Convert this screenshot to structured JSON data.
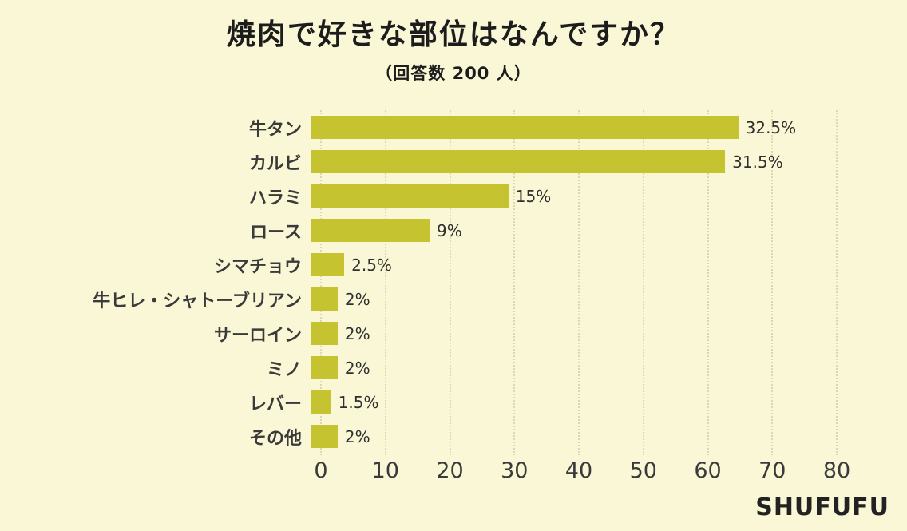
{
  "page": {
    "background": "#f9f7d6",
    "brand": "SHUFUFU"
  },
  "chart_data": {
    "type": "bar",
    "orientation": "horizontal",
    "title": "焼肉で好きな部位はなんですか？",
    "subtitle": "（回答数 200 人）",
    "categories": [
      "牛タン",
      "カルビ",
      "ハラミ",
      "ロース",
      "シマチョウ",
      "牛ヒレ・シャトーブリアン",
      "サーロイン",
      "ミノ",
      "レバー",
      "その他"
    ],
    "values": [
      65,
      63,
      30,
      18,
      5,
      4,
      4,
      4,
      3,
      4
    ],
    "value_labels": [
      "32.5%",
      "31.5%",
      "15%",
      "9%",
      "2.5%",
      "2%",
      "2%",
      "2%",
      "1.5%",
      "2%"
    ],
    "percentages": [
      32.5,
      31.5,
      15,
      9,
      2.5,
      2,
      2,
      2,
      1.5,
      2
    ],
    "total_responses": 200,
    "xlim": [
      0,
      80
    ],
    "xticks": [
      0,
      10,
      20,
      30,
      40,
      50,
      60,
      70,
      80
    ],
    "bar_color": "#c6c330",
    "grid": true,
    "legend": false
  }
}
